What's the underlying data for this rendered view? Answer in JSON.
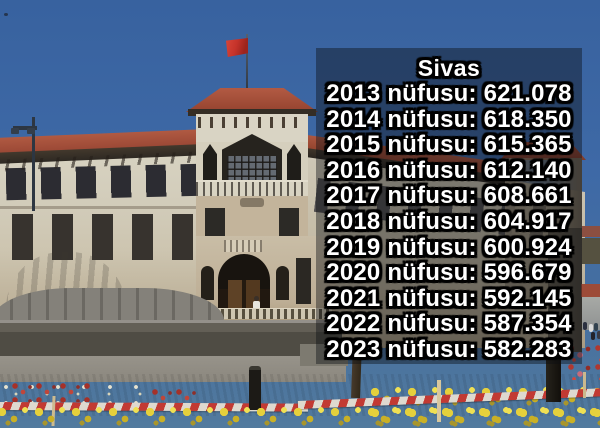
{
  "overlay": {
    "title": "Sivas",
    "lines": [
      "2013 nüfusu: 621.078",
      "2014 nüfusu: 618.350",
      "2015 nüfusu: 615.365",
      "2016 nüfusu: 612.140",
      "2017 nüfusu: 608.661",
      "2018 nüfusu: 604.917",
      "2019 nüfusu: 600.924",
      "2020 nüfusu: 596.679",
      "2021 nüfusu: 592.145",
      "2022 nüfusu: 587.354",
      "2023 nüfusu: 582.283"
    ],
    "text_color": "#ffffff",
    "outline_color": "#000000",
    "panel_color": "rgba(11,14,20,0.42)"
  },
  "scene_colors": {
    "sky": "#3e69a6",
    "roof_red": "#a5503c",
    "wall_cream": "#d6d1c0",
    "flag_red": "#c5332a",
    "tape_red": "#c23a33",
    "flower_yellow": "#e5d03c",
    "flower_red": "#b03830",
    "fountain_gray": "#84817a"
  }
}
